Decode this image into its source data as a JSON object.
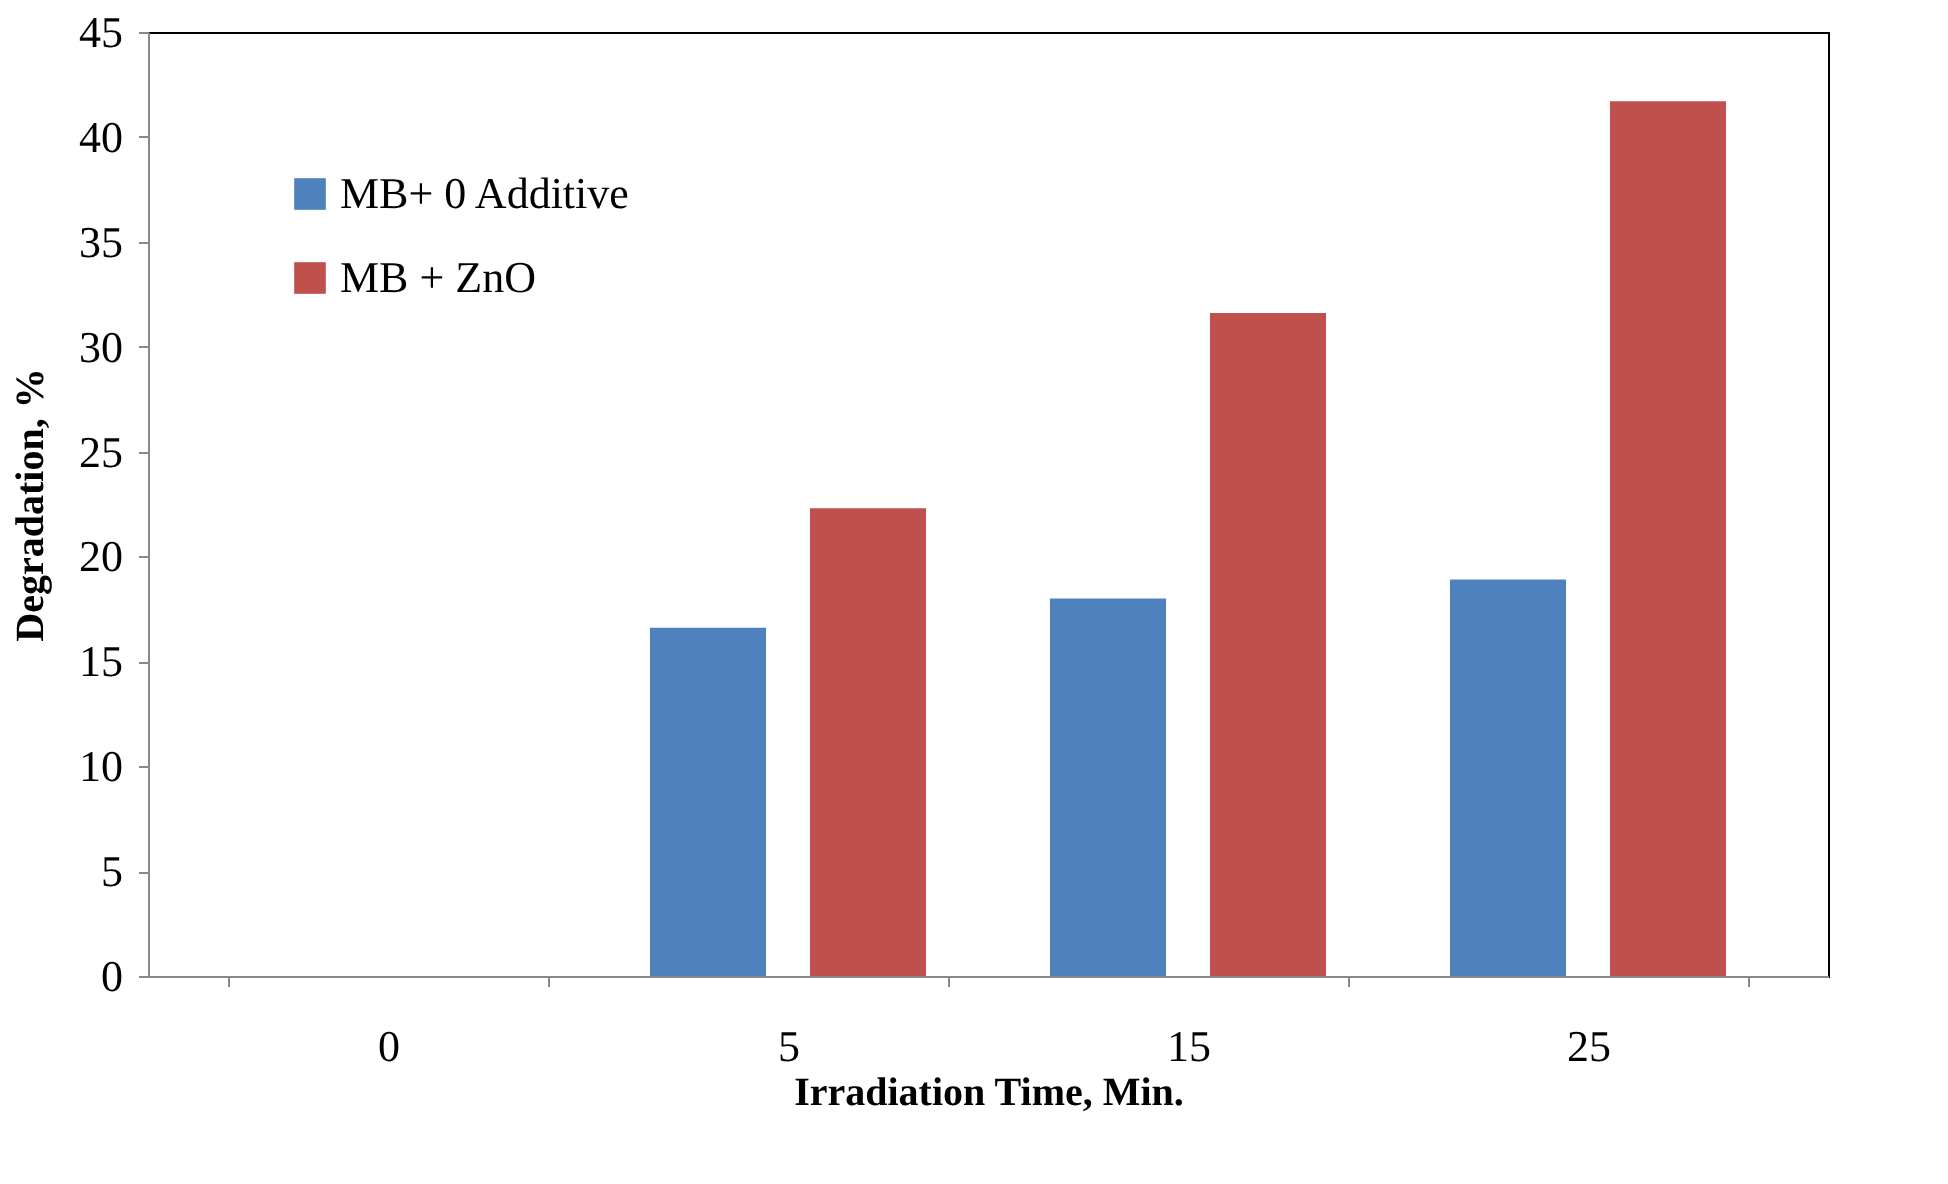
{
  "chart_data": {
    "type": "bar",
    "xlabel": "Irradiation Time, Min.",
    "ylabel": "Degradation, %",
    "categories": [
      "0",
      "5",
      "15",
      "25"
    ],
    "series": [
      {
        "name": "MB+ 0 Additive",
        "color": "#4f81bd",
        "values": [
          0,
          16.6,
          18.0,
          18.9
        ]
      },
      {
        "name": "MB + ZnO",
        "color": "#c0504d",
        "values": [
          0,
          22.3,
          31.6,
          41.7
        ]
      }
    ],
    "ylim": [
      0,
      45
    ],
    "yticks": [
      0,
      5,
      10,
      15,
      20,
      25,
      30,
      35,
      40,
      45
    ],
    "grid": false,
    "legend": "top left"
  }
}
